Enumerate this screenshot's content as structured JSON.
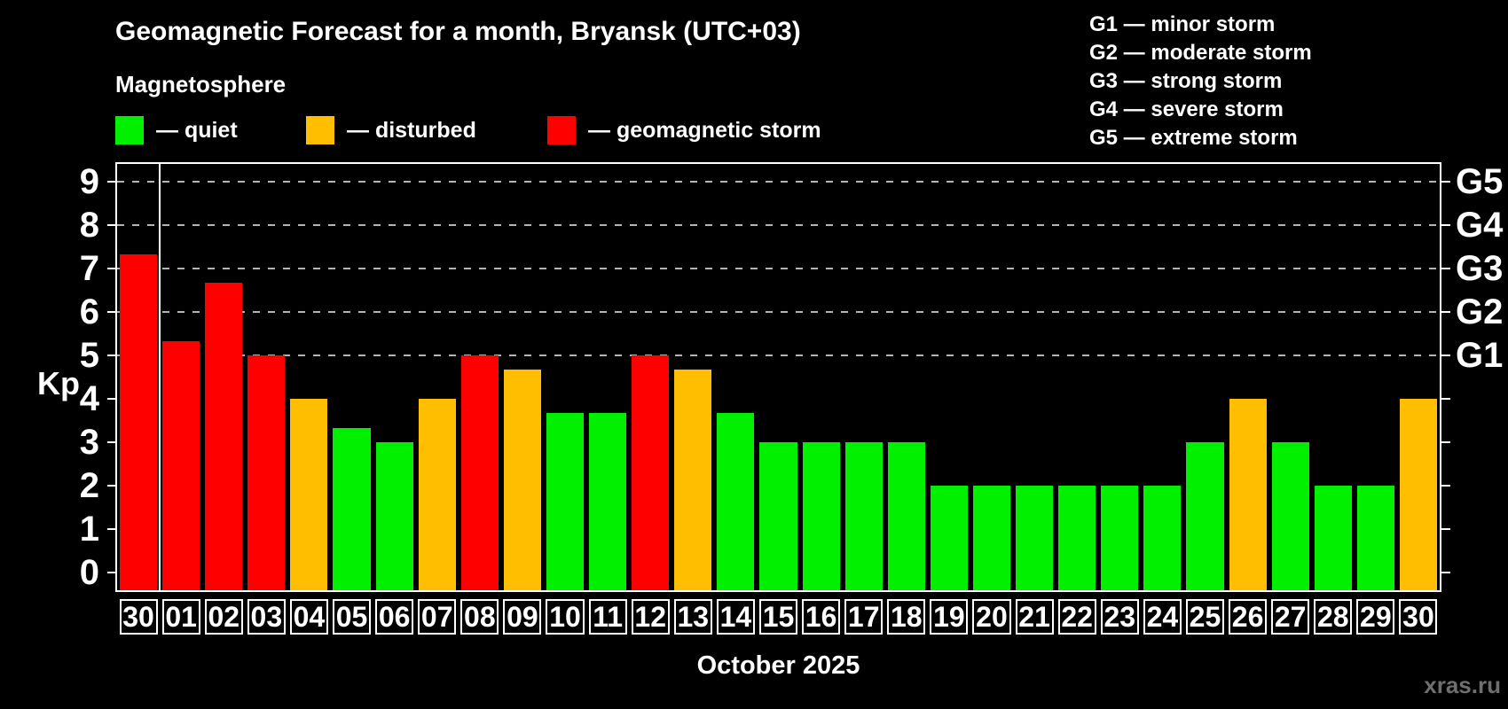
{
  "title": "Geomagnetic Forecast for a month, Bryansk (UTC+03)",
  "subtitle": "Magnetosphere",
  "legend": [
    {
      "key": "quiet",
      "label": "— quiet",
      "color": "#00f000"
    },
    {
      "key": "disturbed",
      "label": "— disturbed",
      "color": "#ffbe00"
    },
    {
      "key": "storm",
      "label": "— geomagnetic storm",
      "color": "#ff0000"
    }
  ],
  "g_scale_legend": [
    "G1 — minor storm",
    "G2 — moderate storm",
    "G3 — strong storm",
    "G4 — severe storm",
    "G5 — extreme storm"
  ],
  "watermark": "xras.ru",
  "colors": {
    "background": "#000000",
    "text": "#ffffff",
    "grid": "#b4b4b4",
    "axis": "#ffffff",
    "watermark": "#6f6f6f",
    "quiet": "#00f000",
    "disturbed": "#ffbe00",
    "storm": "#ff0000"
  },
  "chart_data": {
    "type": "bar",
    "title": "Geomagnetic Forecast for a month, Bryansk (UTC+03)",
    "xlabel": "October 2025",
    "ylabel": "Kp",
    "ylim": [
      -0.4,
      9.4
    ],
    "y_ticks": [
      0,
      1,
      2,
      3,
      4,
      5,
      6,
      7,
      8,
      9
    ],
    "gridlines_at": [
      5,
      6,
      7,
      8,
      9
    ],
    "grid_style": "dashed",
    "legend_position": "top",
    "right_axis": [
      {
        "kp": 5,
        "label": "G1"
      },
      {
        "kp": 6,
        "label": "G2"
      },
      {
        "kp": 7,
        "label": "G3"
      },
      {
        "kp": 8,
        "label": "G4"
      },
      {
        "kp": 9,
        "label": "G5"
      }
    ],
    "month_separator_after_index": 0,
    "categories": [
      "30",
      "01",
      "02",
      "03",
      "04",
      "05",
      "06",
      "07",
      "08",
      "09",
      "10",
      "11",
      "12",
      "13",
      "14",
      "15",
      "16",
      "17",
      "18",
      "19",
      "20",
      "21",
      "22",
      "23",
      "24",
      "25",
      "26",
      "27",
      "28",
      "29",
      "30"
    ],
    "values": [
      7.33,
      5.33,
      6.67,
      5.0,
      4.0,
      3.33,
      3.0,
      4.0,
      5.0,
      4.67,
      3.67,
      3.67,
      5.0,
      4.67,
      3.67,
      3.0,
      3.0,
      3.0,
      3.0,
      2.0,
      2.0,
      2.0,
      2.0,
      2.0,
      2.0,
      3.0,
      4.0,
      3.0,
      2.0,
      2.0,
      4.0
    ],
    "statuses": [
      "storm",
      "storm",
      "storm",
      "storm",
      "disturbed",
      "quiet",
      "quiet",
      "disturbed",
      "storm",
      "disturbed",
      "quiet",
      "quiet",
      "storm",
      "disturbed",
      "quiet",
      "quiet",
      "quiet",
      "quiet",
      "quiet",
      "quiet",
      "quiet",
      "quiet",
      "quiet",
      "quiet",
      "quiet",
      "quiet",
      "disturbed",
      "quiet",
      "quiet",
      "quiet",
      "disturbed"
    ]
  }
}
